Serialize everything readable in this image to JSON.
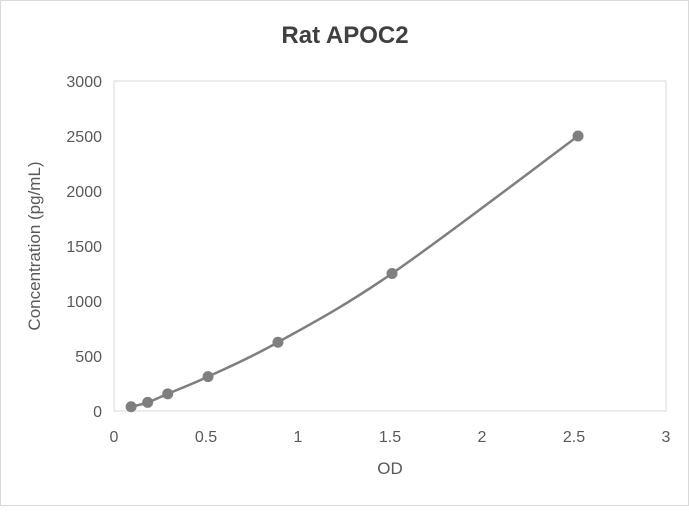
{
  "chart_data": {
    "type": "scatter",
    "title": "Rat APOC2",
    "xlabel": "OD",
    "ylabel": "Concentration (pg/mL)",
    "xlim": [
      0,
      3
    ],
    "ylim": [
      0,
      3000
    ],
    "xticks": [
      "0",
      "0.5",
      "1",
      "1.5",
      "2",
      "2.5",
      "3"
    ],
    "yticks": [
      "0",
      "500",
      "1000",
      "1500",
      "2000",
      "2500",
      "3000"
    ],
    "grid": false,
    "legend": "none",
    "smooth_line": true,
    "color": "#7f7f7f",
    "points": [
      {
        "x": 0.093,
        "y": 39.06
      },
      {
        "x": 0.183,
        "y": 78.13
      },
      {
        "x": 0.292,
        "y": 156.25
      },
      {
        "x": 0.511,
        "y": 312.5
      },
      {
        "x": 0.891,
        "y": 625
      },
      {
        "x": 1.511,
        "y": 1250
      },
      {
        "x": 2.522,
        "y": 2500
      }
    ]
  }
}
